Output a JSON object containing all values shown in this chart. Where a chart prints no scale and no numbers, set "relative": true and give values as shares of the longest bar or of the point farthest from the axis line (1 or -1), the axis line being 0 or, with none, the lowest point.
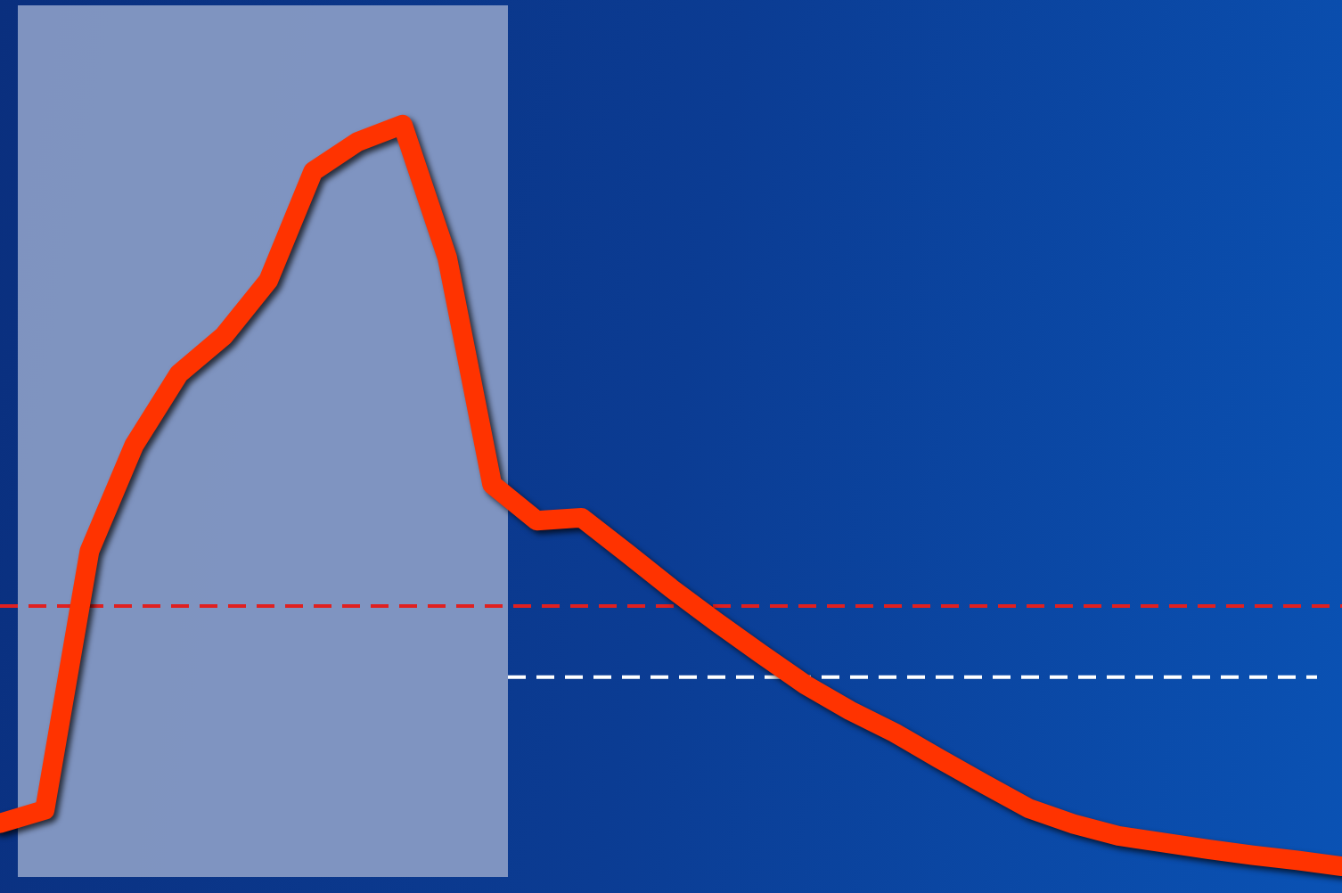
{
  "chart_data": {
    "type": "line",
    "relative": true,
    "tick_labels": false,
    "legend": false,
    "marker": "none",
    "line_style": "solid",
    "categories": [
      null,
      null,
      null,
      null,
      null,
      null,
      null,
      null,
      null,
      null,
      null,
      null,
      null,
      null,
      null,
      null,
      null,
      null,
      null,
      null,
      null,
      null,
      null,
      null,
      null,
      null,
      null,
      null,
      null,
      null,
      null
    ],
    "series": [
      {
        "color": "#ff3300",
        "values": [
          0.058,
          0.076,
          0.425,
          0.568,
          0.664,
          0.715,
          0.79,
          0.937,
          0.977,
          1,
          0.82,
          0.515,
          0.466,
          0.47,
          0.423,
          0.375,
          0.33,
          0.287,
          0.245,
          0.21,
          0.18,
          0.145,
          0.111,
          0.078,
          0.057,
          0.041,
          0.032,
          0.023,
          0.015,
          0.008,
          0
        ]
      }
    ],
    "ref_lines": [
      {
        "axis": "y",
        "value": 0.351,
        "color": "#e02020",
        "line_style": "dashed"
      },
      {
        "axis": "y",
        "value": 0.255,
        "color": "#ffffff",
        "line_style": "dashed"
      }
    ]
  }
}
